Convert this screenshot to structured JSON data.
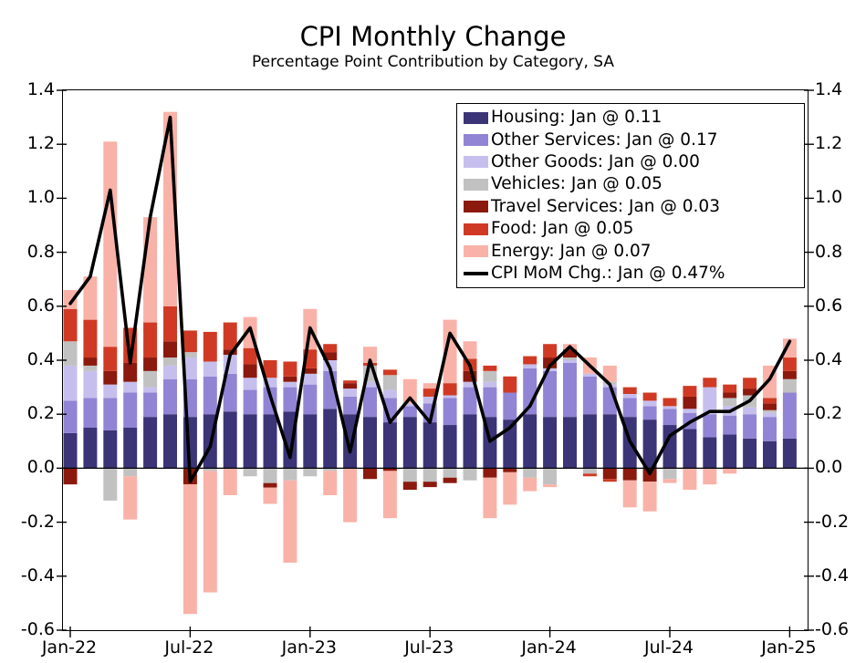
{
  "title": "CPI Monthly Change",
  "subtitle": "Percentage Point Contribution by Category, SA",
  "axes": {
    "y_tick_labels": [
      "1.4",
      "1.2",
      "1.0",
      "0.8",
      "0.6",
      "0.4",
      "0.2",
      "0.0",
      "-0.2",
      "-0.4",
      "-0.6"
    ],
    "y_tick_values": [
      1.4,
      1.2,
      1.0,
      0.8,
      0.6,
      0.4,
      0.2,
      0.0,
      -0.2,
      -0.4,
      -0.6
    ],
    "x_tick_labels": [
      "Jan-22",
      "Jul-22",
      "Jan-23",
      "Jul-23",
      "Jan-24",
      "Jul-24",
      "Jan-25"
    ],
    "x_tick_month_indices": [
      0,
      6,
      12,
      18,
      24,
      30,
      36
    ]
  },
  "legend": {
    "entries": [
      {
        "label": "Housing: Jan @ 0.11",
        "color": "#3b3477",
        "swatch": "box"
      },
      {
        "label": "Other Services: Jan @ 0.17",
        "color": "#9184d4",
        "swatch": "box"
      },
      {
        "label": "Other Goods: Jan @ 0.00",
        "color": "#c6bfee",
        "swatch": "box"
      },
      {
        "label": "Vehicles: Jan @ 0.05",
        "color": "#c1c1c1",
        "swatch": "box"
      },
      {
        "label": "Travel Services: Jan @ 0.03",
        "color": "#8b190e",
        "swatch": "box"
      },
      {
        "label": "Food: Jan @ 0.05",
        "color": "#d03a24",
        "swatch": "box"
      },
      {
        "label": "Energy: Jan @ 0.07",
        "color": "#f9b2a8",
        "swatch": "box"
      },
      {
        "label": "CPI MoM Chg.: Jan @ 0.47%",
        "color": "#000000",
        "swatch": "line"
      }
    ]
  },
  "chart_data": {
    "type": "bar",
    "stacked": true,
    "overlay": "line",
    "title": "CPI Monthly Change",
    "subtitle": "Percentage Point Contribution by Category, SA",
    "ylim": [
      -0.6,
      1.4
    ],
    "grid": false,
    "legend_position": "upper-right",
    "x": [
      "Jan-22",
      "Feb-22",
      "Mar-22",
      "Apr-22",
      "May-22",
      "Jun-22",
      "Jul-22",
      "Aug-22",
      "Sep-22",
      "Oct-22",
      "Nov-22",
      "Dec-22",
      "Jan-23",
      "Feb-23",
      "Mar-23",
      "Apr-23",
      "May-23",
      "Jun-23",
      "Jul-23",
      "Aug-23",
      "Sep-23",
      "Oct-23",
      "Nov-23",
      "Dec-23",
      "Jan-24",
      "Feb-24",
      "Mar-24",
      "Apr-24",
      "May-24",
      "Jun-24",
      "Jul-24",
      "Aug-24",
      "Sep-24",
      "Oct-24",
      "Nov-24",
      "Dec-24",
      "Jan-25"
    ],
    "series": [
      {
        "name": "Housing",
        "color": "#3b3477",
        "values": [
          0.13,
          0.15,
          0.14,
          0.15,
          0.19,
          0.2,
          0.19,
          0.2,
          0.21,
          0.2,
          0.2,
          0.21,
          0.2,
          0.22,
          0.2,
          0.19,
          0.17,
          0.19,
          0.17,
          0.16,
          0.2,
          0.19,
          0.18,
          0.2,
          0.19,
          0.19,
          0.2,
          0.2,
          0.19,
          0.18,
          0.16,
          0.145,
          0.115,
          0.125,
          0.11,
          0.1,
          0.11
        ]
      },
      {
        "name": "Other Services",
        "color": "#9184d4",
        "values": [
          0.12,
          0.11,
          0.12,
          0.13,
          0.09,
          0.13,
          0.14,
          0.14,
          0.14,
          0.09,
          0.1,
          0.09,
          0.11,
          0.14,
          0.065,
          0.11,
          0.09,
          0.04,
          0.07,
          0.1,
          0.1,
          0.11,
          0.1,
          0.17,
          0.17,
          0.2,
          0.14,
          0.1,
          0.07,
          0.05,
          0.06,
          0.06,
          0.085,
          0.07,
          0.09,
          0.09,
          0.17
        ]
      },
      {
        "name": "Other Goods",
        "color": "#c6bfee",
        "values": [
          0.13,
          0.1,
          0.05,
          0.04,
          0.02,
          0.05,
          0.08,
          0.055,
          0.07,
          0.045,
          0.035,
          0.02,
          0.04,
          0.04,
          0.03,
          0.02,
          0.03,
          0.01,
          0.025,
          0.01,
          0.02,
          0.02,
          0,
          0.015,
          0.01,
          0.01,
          0.01,
          0.01,
          0.015,
          0.02,
          0.01,
          0.015,
          0.1,
          0.035,
          0.025,
          0.015,
          0
        ]
      },
      {
        "name": "Vehicles",
        "color": "#c1c1c1",
        "values": [
          0.09,
          0.02,
          -0.12,
          -0.03,
          0.06,
          0.03,
          0.02,
          -0.01,
          0,
          -0.03,
          -0.055,
          -0.045,
          -0.03,
          -0.01,
          0,
          0.06,
          0.055,
          -0.05,
          -0.05,
          -0.035,
          -0.045,
          0.04,
          0,
          -0.035,
          -0.06,
          0.01,
          -0.02,
          0.01,
          0,
          0,
          -0.04,
          0,
          0,
          0.03,
          0.045,
          0.01,
          0.05
        ]
      },
      {
        "name": "Travel Services",
        "color": "#8b190e",
        "values": [
          -0.06,
          0.03,
          0.05,
          0.07,
          0.05,
          0.06,
          -0.06,
          0,
          0.02,
          0.05,
          -0.017,
          0.02,
          0.02,
          0.03,
          0.02,
          -0.04,
          -0.01,
          -0.03,
          -0.02,
          -0.02,
          0.04,
          -0.035,
          -0.015,
          0,
          0.04,
          0.03,
          0,
          -0.04,
          -0.045,
          -0.05,
          0,
          0.045,
          0,
          0.02,
          0.025,
          0.025,
          0.03
        ]
      },
      {
        "name": "Food",
        "color": "#d03a24",
        "values": [
          0.12,
          0.14,
          0.09,
          0.13,
          0.13,
          0.13,
          0.08,
          0.11,
          0.1,
          0.06,
          0.065,
          0.055,
          0.07,
          0.03,
          0.01,
          0.01,
          0.02,
          0,
          0.03,
          0.045,
          0.045,
          0.02,
          0.06,
          0.03,
          0.05,
          0,
          -0.01,
          -0.01,
          0.025,
          0.03,
          0.03,
          0.04,
          0.035,
          0.03,
          0.04,
          0.02,
          0.05
        ]
      },
      {
        "name": "Energy",
        "color": "#f9b2a8",
        "values": [
          0.07,
          0.16,
          0.76,
          -0.16,
          0.39,
          0.72,
          -0.48,
          -0.45,
          -0.1,
          0.115,
          -0.06,
          -0.305,
          0.15,
          -0.09,
          -0.2,
          0.06,
          -0.175,
          0.09,
          0.02,
          0.235,
          0.065,
          -0.15,
          -0.12,
          -0.05,
          -0.01,
          0.02,
          0.06,
          0.06,
          -0.1,
          -0.11,
          -0.015,
          -0.08,
          -0.06,
          -0.02,
          0,
          0.12,
          0.07
        ]
      }
    ],
    "line_series": {
      "name": "CPI MoM Chg.",
      "color": "#000000",
      "values": [
        0.61,
        0.71,
        1.03,
        0.39,
        0.93,
        1.3,
        -0.05,
        0.08,
        0.42,
        0.52,
        0.27,
        0.04,
        0.52,
        0.37,
        0.06,
        0.4,
        0.17,
        0.26,
        0.17,
        0.5,
        0.38,
        0.1,
        0.15,
        0.23,
        0.38,
        0.45,
        0.38,
        0.31,
        0.1,
        -0.02,
        0.12,
        0.17,
        0.21,
        0.21,
        0.25,
        0.33,
        0.47
      ]
    }
  }
}
